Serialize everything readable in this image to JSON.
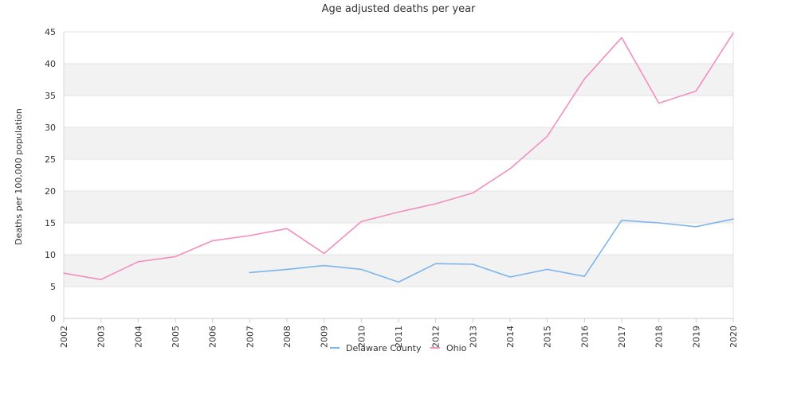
{
  "chart_data": {
    "type": "line",
    "title": "Age adjusted deaths per year",
    "xlabel": "",
    "ylabel": "Deaths per 100,000 population",
    "categories": [
      "2002",
      "2003",
      "2004",
      "2005",
      "2006",
      "2007",
      "2008",
      "2009",
      "2010",
      "2011",
      "2012",
      "2013",
      "2014",
      "2015",
      "2016",
      "2017",
      "2018",
      "2019",
      "2020"
    ],
    "ylim": [
      0,
      45
    ],
    "yticks": [
      0,
      5,
      10,
      15,
      20,
      25,
      30,
      35,
      40,
      45
    ],
    "grid": "alternating horizontal bands",
    "legend_position": "bottom",
    "series": [
      {
        "name": "Delaware County",
        "color": "#7cb5ec",
        "values": [
          null,
          null,
          null,
          null,
          null,
          7.2,
          7.7,
          8.3,
          7.7,
          5.7,
          8.6,
          8.5,
          6.5,
          7.7,
          6.6,
          15.4,
          15.0,
          14.4,
          15.6
        ]
      },
      {
        "name": "Ohio",
        "color": "#f28fbf",
        "values": [
          7.1,
          6.1,
          8.9,
          9.7,
          12.2,
          13.0,
          14.1,
          10.2,
          15.2,
          16.7,
          18.0,
          19.7,
          23.5,
          28.6,
          37.6,
          44.1,
          33.8,
          35.7,
          44.8
        ]
      }
    ]
  }
}
